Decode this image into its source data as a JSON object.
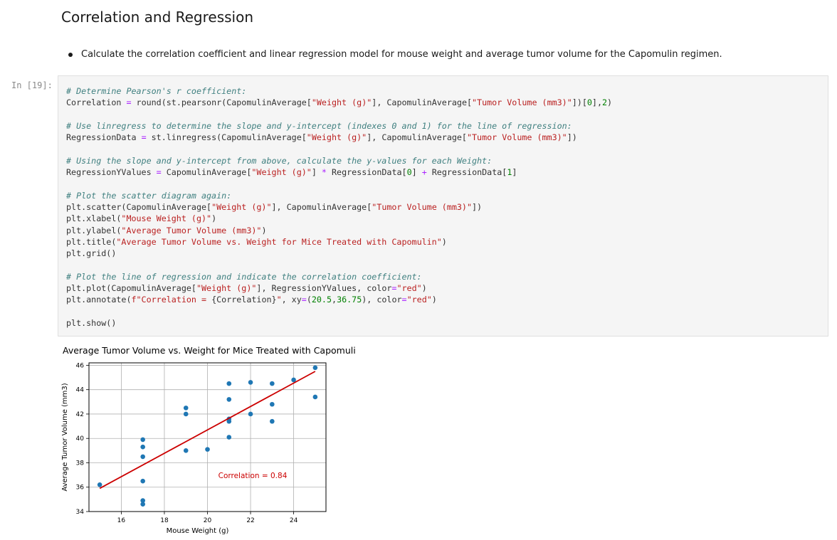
{
  "markdown": {
    "heading": "Correlation and Regression",
    "bullet": "Calculate the correlation coefficient and linear regression model for mouse weight and average tumor volume for the Capomulin regimen."
  },
  "cell": {
    "prompt": "In [19]:",
    "lines": [
      [
        {
          "t": "# Determine Pearson's r coefficient:",
          "c": "com"
        }
      ],
      [
        {
          "t": "Correlation "
        },
        {
          "t": "=",
          "c": "op"
        },
        {
          "t": " round(st.pearsonr(CapomulinAverage["
        },
        {
          "t": "\"Weight (g)\"",
          "c": "str"
        },
        {
          "t": "], CapomulinAverage["
        },
        {
          "t": "\"Tumor Volume (mm3)\"",
          "c": "str"
        },
        {
          "t": "])["
        },
        {
          "t": "0",
          "c": "num"
        },
        {
          "t": "],"
        },
        {
          "t": "2",
          "c": "num"
        },
        {
          "t": ")"
        }
      ],
      [],
      [
        {
          "t": "# Use linregress to determine the slope and y-intercept (indexes 0 and 1) for the line of regression:",
          "c": "com"
        }
      ],
      [
        {
          "t": "RegressionData "
        },
        {
          "t": "=",
          "c": "op"
        },
        {
          "t": " st.linregress(CapomulinAverage["
        },
        {
          "t": "\"Weight (g)\"",
          "c": "str"
        },
        {
          "t": "], CapomulinAverage["
        },
        {
          "t": "\"Tumor Volume (mm3)\"",
          "c": "str"
        },
        {
          "t": "])"
        }
      ],
      [],
      [
        {
          "t": "# Using the slope and y-intercept from above, calculate the y-values for each Weight:",
          "c": "com"
        }
      ],
      [
        {
          "t": "RegressionYValues "
        },
        {
          "t": "=",
          "c": "op"
        },
        {
          "t": " CapomulinAverage["
        },
        {
          "t": "\"Weight (g)\"",
          "c": "str"
        },
        {
          "t": "] "
        },
        {
          "t": "*",
          "c": "op"
        },
        {
          "t": " RegressionData["
        },
        {
          "t": "0",
          "c": "num"
        },
        {
          "t": "] "
        },
        {
          "t": "+",
          "c": "op"
        },
        {
          "t": " RegressionData["
        },
        {
          "t": "1",
          "c": "num"
        },
        {
          "t": "]"
        }
      ],
      [],
      [
        {
          "t": "# Plot the scatter diagram again:",
          "c": "com"
        }
      ],
      [
        {
          "t": "plt.scatter(CapomulinAverage["
        },
        {
          "t": "\"Weight (g)\"",
          "c": "str"
        },
        {
          "t": "], CapomulinAverage["
        },
        {
          "t": "\"Tumor Volume (mm3)\"",
          "c": "str"
        },
        {
          "t": "])"
        }
      ],
      [
        {
          "t": "plt.xlabel("
        },
        {
          "t": "\"Mouse Weight (g)\"",
          "c": "str"
        },
        {
          "t": ")"
        }
      ],
      [
        {
          "t": "plt.ylabel("
        },
        {
          "t": "\"Average Tumor Volume (mm3)\"",
          "c": "str"
        },
        {
          "t": ")"
        }
      ],
      [
        {
          "t": "plt.title("
        },
        {
          "t": "\"Average Tumor Volume vs. Weight for Mice Treated with Capomulin\"",
          "c": "str"
        },
        {
          "t": ")"
        }
      ],
      [
        {
          "t": "plt.grid()"
        }
      ],
      [],
      [
        {
          "t": "# Plot the line of regression and indicate the correlation coefficient:",
          "c": "com"
        }
      ],
      [
        {
          "t": "plt.plot(CapomulinAverage["
        },
        {
          "t": "\"Weight (g)\"",
          "c": "str"
        },
        {
          "t": "], RegressionYValues, color"
        },
        {
          "t": "=",
          "c": "op"
        },
        {
          "t": "\"red\"",
          "c": "str"
        },
        {
          "t": ")"
        }
      ],
      [
        {
          "t": "plt.annotate("
        },
        {
          "t": "f\"Correlation = ",
          "c": "str"
        },
        {
          "t": "{Correlation}"
        },
        {
          "t": "\"",
          "c": "str"
        },
        {
          "t": ", xy"
        },
        {
          "t": "=",
          "c": "op"
        },
        {
          "t": "("
        },
        {
          "t": "20.5",
          "c": "num"
        },
        {
          "t": ","
        },
        {
          "t": "36.75",
          "c": "num"
        },
        {
          "t": "), color"
        },
        {
          "t": "=",
          "c": "op"
        },
        {
          "t": "\"red\"",
          "c": "str"
        },
        {
          "t": ")"
        }
      ],
      [],
      [
        {
          "t": "plt.show()"
        }
      ]
    ]
  },
  "chart_data": {
    "type": "scatter",
    "title": "Average Tumor Volume vs. Weight for Mice Treated with Capomulin",
    "xlabel": "Mouse Weight (g)",
    "ylabel": "Average Tumor Volume (mm3)",
    "xlim": [
      14.5,
      25.5
    ],
    "ylim": [
      34,
      46.2
    ],
    "xticks": [
      16,
      18,
      20,
      22,
      24
    ],
    "yticks": [
      34,
      36,
      38,
      40,
      42,
      44,
      46
    ],
    "grid": true,
    "points": [
      [
        15,
        36.2
      ],
      [
        17,
        34.6
      ],
      [
        17,
        34.9
      ],
      [
        17,
        36.5
      ],
      [
        17,
        38.5
      ],
      [
        17,
        39.3
      ],
      [
        17,
        39.9
      ],
      [
        19,
        39.0
      ],
      [
        19,
        42.0
      ],
      [
        19,
        42.5
      ],
      [
        20,
        39.1
      ],
      [
        21,
        40.1
      ],
      [
        21,
        41.4
      ],
      [
        21,
        41.6
      ],
      [
        21,
        43.2
      ],
      [
        21,
        44.5
      ],
      [
        22,
        42.0
      ],
      [
        22,
        44.6
      ],
      [
        23,
        41.4
      ],
      [
        23,
        42.8
      ],
      [
        23,
        44.5
      ],
      [
        24,
        44.8
      ],
      [
        25,
        43.4
      ],
      [
        25,
        45.8
      ]
    ],
    "point_color": "#1f77b4",
    "regression": {
      "x": [
        15,
        25
      ],
      "y": [
        35.9,
        45.5
      ],
      "color": "#cc0000"
    },
    "annotation": {
      "text": "Correlation = 0.84",
      "x": 20.5,
      "y": 36.75,
      "color": "#cc0000"
    }
  }
}
